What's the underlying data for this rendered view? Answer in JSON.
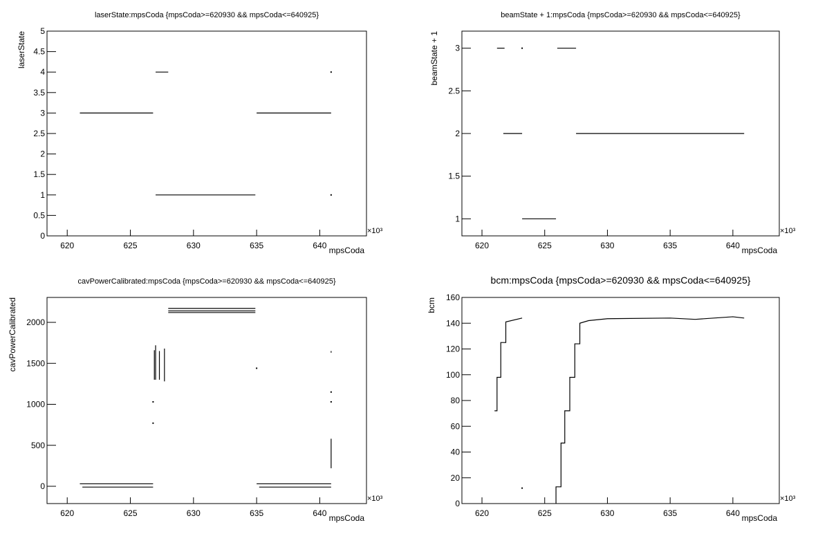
{
  "chart_data": [
    {
      "type": "line",
      "title": "laserState:mpsCoda {mpsCoda>=620930 && mpsCoda<=640925}",
      "x_label": "mpsCoda",
      "y_label": "laserState",
      "x_multiplier": "×10³",
      "color": "#000000",
      "xlim": [
        618.4,
        643.7
      ],
      "xticks": [
        620,
        625,
        630,
        635,
        640
      ],
      "ylim": [
        0,
        5
      ],
      "yticks": [
        0,
        0.5,
        1,
        1.5,
        2,
        2.5,
        3,
        3.5,
        4,
        4.5,
        5
      ],
      "x": [
        621.0,
        626.8,
        null,
        627.0,
        628.0,
        null,
        627.0,
        634.9,
        null,
        635.0,
        640.9,
        null,
        640.9,
        null,
        640.9
      ],
      "y": [
        3,
        3,
        null,
        4,
        4,
        null,
        1,
        1,
        null,
        3,
        3,
        null,
        4,
        null,
        1
      ]
    },
    {
      "type": "line",
      "title": "beamState + 1:mpsCoda {mpsCoda>=620930 && mpsCoda<=640925}",
      "x_label": "mpsCoda",
      "y_label": "beamState + 1",
      "x_multiplier": "×10³",
      "color": "#000000",
      "xlim": [
        618.4,
        643.7
      ],
      "xticks": [
        620,
        625,
        630,
        635,
        640
      ],
      "ylim": [
        0.8,
        3.2
      ],
      "yticks": [
        1,
        1.5,
        2,
        2.5,
        3
      ],
      "x": [
        621.2,
        621.8,
        null,
        621.7,
        623.2,
        null,
        623.2,
        null,
        623.2,
        625.9,
        null,
        626.0,
        627.5,
        null,
        627.5,
        640.9
      ],
      "y": [
        3,
        3,
        null,
        2,
        2,
        null,
        3,
        null,
        1,
        1,
        null,
        3,
        3,
        null,
        2,
        2
      ]
    },
    {
      "type": "line",
      "title": "cavPowerCalibrated:mpsCoda {mpsCoda>=620930 && mpsCoda<=640925}",
      "x_label": "mpsCoda",
      "y_label": "cavPowerCalibrated",
      "x_multiplier": "×10³",
      "color": "#000000",
      "xlim": [
        618.4,
        643.7
      ],
      "xticks": [
        620,
        625,
        630,
        635,
        640
      ],
      "ylim": [
        -211,
        2304
      ],
      "yticks": [
        0,
        500,
        1000,
        1500,
        2000
      ],
      "x": [
        621.0,
        626.8,
        null,
        621.2,
        626.8,
        null,
        626.9,
        626.9,
        null,
        627.0,
        627.0,
        null,
        627.3,
        627.3,
        null,
        627.7,
        627.7,
        null,
        628.0,
        634.9,
        null,
        628.0,
        634.9,
        null,
        628.0,
        634.9,
        null,
        635.0,
        640.9,
        null,
        635.2,
        640.9,
        null,
        640.9,
        640.9,
        null,
        640.9,
        null,
        640.9,
        null,
        640.9,
        640.9,
        null,
        626.8,
        null,
        626.8,
        null,
        635.0
      ],
      "y": [
        30,
        30,
        null,
        -10,
        -10,
        null,
        1300,
        1660,
        null,
        1300,
        1720,
        null,
        1300,
        1650,
        null,
        1280,
        1680,
        null,
        2170,
        2170,
        null,
        2140,
        2140,
        null,
        2120,
        2120,
        null,
        30,
        30,
        null,
        -10,
        -10,
        null,
        1630,
        1650,
        null,
        1150,
        null,
        1030,
        null,
        220,
        580,
        null,
        1030,
        null,
        770,
        null,
        1440
      ]
    },
    {
      "type": "line",
      "title": "bcm:mpsCoda {mpsCoda>=620930 && mpsCoda<=640925}",
      "x_label": "mpsCoda",
      "y_label": "bcm",
      "x_multiplier": "×10³",
      "color": "#000000",
      "xlim": [
        618.4,
        643.7
      ],
      "xticks": [
        620,
        625,
        630,
        635,
        640
      ],
      "ylim": [
        0,
        160
      ],
      "yticks": [
        0,
        20,
        40,
        60,
        80,
        100,
        120,
        140,
        160
      ],
      "x": [
        621.0,
        621.2,
        621.2,
        621.5,
        621.5,
        621.9,
        621.9,
        623.2,
        null,
        623.2,
        null,
        625.9,
        625.9,
        626.3,
        626.3,
        626.6,
        626.6,
        627.0,
        627.0,
        627.4,
        627.4,
        627.8,
        627.8,
        628.5,
        630.0,
        635.0,
        637.0,
        640.0,
        640.9
      ],
      "y": [
        72,
        72,
        98,
        98,
        125,
        125,
        141,
        144,
        null,
        12,
        null,
        0,
        13,
        13,
        47,
        47,
        72,
        72,
        98,
        98,
        124,
        124,
        140,
        142,
        143.5,
        144,
        143,
        145,
        144
      ]
    }
  ]
}
